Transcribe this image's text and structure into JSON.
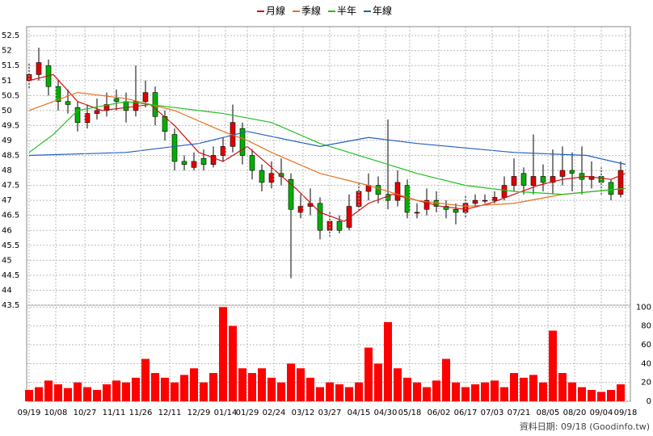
{
  "chart_data": [
    {
      "type": "candlestick",
      "legend": "top",
      "grid": true,
      "up_color": "#e00000",
      "down_color": "#00b000",
      "xlim": [
        -1,
        248
      ],
      "ylim": [
        43.5,
        52.8
      ],
      "yticks": [
        43.5,
        44,
        44.5,
        45,
        45.5,
        46,
        46.5,
        47,
        47.5,
        48,
        48.5,
        49,
        49.5,
        50,
        50.5,
        51,
        51.5,
        52,
        52.5
      ],
      "xticks": [
        {
          "value": 0,
          "label": "09/19"
        },
        {
          "value": 11,
          "label": "10/08"
        },
        {
          "value": 23,
          "label": "10/27"
        },
        {
          "value": 35,
          "label": "11/11"
        },
        {
          "value": 46,
          "label": "11/26"
        },
        {
          "value": 58,
          "label": "12/11"
        },
        {
          "value": 70,
          "label": "12/29"
        },
        {
          "value": 81,
          "label": "01/14"
        },
        {
          "value": 90,
          "label": "01/29"
        },
        {
          "value": 101,
          "label": "02/24"
        },
        {
          "value": 113,
          "label": "03/12"
        },
        {
          "value": 124,
          "label": "03/27"
        },
        {
          "value": 136,
          "label": "04/15"
        },
        {
          "value": 147,
          "label": "04/30"
        },
        {
          "value": 157,
          "label": "05/18"
        },
        {
          "value": 169,
          "label": "06/02"
        },
        {
          "value": 180,
          "label": "06/17"
        },
        {
          "value": 191,
          "label": "07/03"
        },
        {
          "value": 202,
          "label": "07/21"
        },
        {
          "value": 214,
          "label": "08/05"
        },
        {
          "value": 225,
          "label": "08/20"
        },
        {
          "value": 236,
          "label": "09/04"
        },
        {
          "value": 246,
          "label": "09/18"
        }
      ],
      "x": [
        0,
        4,
        8,
        12,
        16,
        20,
        24,
        28,
        32,
        36,
        40,
        44,
        48,
        52,
        56,
        60,
        64,
        68,
        72,
        76,
        80,
        84,
        88,
        92,
        96,
        100,
        104,
        108,
        112,
        116,
        120,
        124,
        128,
        132,
        136,
        140,
        144,
        148,
        152,
        156,
        160,
        164,
        168,
        172,
        176,
        180,
        184,
        188,
        192,
        196,
        200,
        204,
        208,
        212,
        216,
        220,
        224,
        228,
        232,
        236,
        240,
        244
      ],
      "open": [
        51.0,
        51.2,
        51.5,
        50.8,
        50.3,
        50.1,
        49.6,
        49.9,
        50.0,
        50.4,
        50.3,
        50.0,
        50.3,
        50.6,
        49.8,
        49.2,
        48.3,
        48.1,
        48.4,
        48.2,
        48.5,
        48.8,
        49.4,
        48.5,
        48.0,
        47.6,
        47.9,
        47.7,
        46.6,
        46.8,
        46.9,
        46.0,
        46.3,
        46.1,
        46.8,
        47.3,
        47.5,
        47.2,
        47.0,
        47.5,
        46.6,
        46.7,
        47.0,
        46.8,
        46.7,
        46.6,
        46.9,
        47.0,
        47.0,
        47.1,
        47.5,
        47.9,
        47.5,
        47.8,
        47.6,
        47.8,
        48.0,
        47.9,
        47.7,
        47.8,
        47.6,
        47.2
      ],
      "high": [
        51.6,
        52.1,
        51.7,
        51.0,
        50.7,
        50.3,
        50.2,
        50.4,
        50.6,
        50.7,
        50.6,
        51.5,
        51.0,
        50.8,
        50.0,
        49.4,
        48.5,
        48.6,
        48.7,
        48.8,
        49.1,
        50.2,
        49.6,
        48.7,
        48.2,
        48.3,
        48.4,
        47.9,
        47.2,
        47.4,
        47.1,
        46.6,
        46.5,
        47.2,
        47.6,
        47.9,
        47.8,
        49.7,
        48.0,
        47.7,
        46.9,
        47.4,
        47.3,
        47.0,
        46.9,
        47.2,
        47.2,
        47.2,
        47.3,
        47.8,
        48.4,
        48.1,
        49.2,
        48.2,
        48.7,
        48.8,
        48.6,
        48.8,
        48.3,
        48.1,
        47.7,
        48.3
      ],
      "low": [
        50.7,
        51.0,
        50.5,
        50.0,
        49.9,
        49.3,
        49.4,
        49.7,
        49.8,
        50.0,
        49.6,
        49.8,
        50.1,
        49.5,
        49.0,
        48.0,
        48.0,
        48.0,
        48.0,
        48.1,
        48.3,
        48.6,
        48.2,
        47.7,
        47.3,
        47.4,
        47.5,
        44.4,
        46.4,
        46.5,
        45.7,
        45.8,
        45.9,
        46.0,
        46.6,
        47.0,
        46.9,
        46.7,
        46.8,
        46.4,
        46.4,
        46.5,
        46.6,
        46.4,
        46.2,
        46.4,
        46.8,
        46.9,
        46.9,
        47.0,
        47.3,
        47.2,
        47.2,
        47.3,
        47.2,
        47.5,
        47.3,
        47.2,
        47.4,
        47.2,
        47.0,
        47.1
      ],
      "close": [
        51.2,
        51.6,
        50.8,
        50.3,
        50.2,
        49.6,
        49.9,
        50.0,
        50.2,
        50.3,
        50.0,
        50.3,
        50.6,
        49.8,
        49.3,
        48.3,
        48.2,
        48.3,
        48.2,
        48.5,
        48.8,
        49.6,
        48.5,
        48.0,
        47.6,
        47.9,
        47.8,
        46.7,
        46.8,
        46.9,
        46.0,
        46.3,
        46.0,
        46.8,
        47.3,
        47.5,
        47.2,
        47.0,
        47.6,
        46.6,
        46.6,
        47.0,
        46.8,
        46.7,
        46.6,
        46.9,
        47.0,
        47.0,
        47.1,
        47.5,
        47.8,
        47.5,
        47.8,
        47.6,
        47.8,
        48.0,
        47.9,
        47.7,
        47.8,
        47.6,
        47.2,
        48.0
      ],
      "series": [
        {
          "name": "月線",
          "color": "#d01010",
          "x": [
            0,
            10,
            20,
            30,
            40,
            50,
            60,
            70,
            80,
            90,
            100,
            110,
            120,
            130,
            140,
            150,
            160,
            170,
            180,
            190,
            200,
            210,
            220,
            230,
            240,
            246
          ],
          "values": [
            51.0,
            51.2,
            50.3,
            50.0,
            50.1,
            50.2,
            49.5,
            48.6,
            48.3,
            48.8,
            48.1,
            47.4,
            46.6,
            46.3,
            46.9,
            47.2,
            47.0,
            46.8,
            46.7,
            46.9,
            47.2,
            47.5,
            47.7,
            47.8,
            47.7,
            47.9
          ]
        },
        {
          "name": "季線",
          "color": "#e87020",
          "x": [
            0,
            20,
            40,
            60,
            80,
            90,
            100,
            120,
            140,
            160,
            180,
            200,
            220,
            246
          ],
          "values": [
            50.0,
            50.6,
            50.4,
            50.0,
            49.3,
            49.0,
            48.6,
            47.9,
            47.5,
            47.0,
            46.8,
            46.9,
            47.2,
            47.4
          ]
        },
        {
          "name": "半年",
          "color": "#20c020",
          "x": [
            0,
            10,
            20,
            40,
            60,
            80,
            100,
            120,
            140,
            160,
            180,
            200,
            220,
            246
          ],
          "values": [
            48.6,
            49.2,
            50.0,
            50.3,
            50.1,
            49.9,
            49.6,
            48.9,
            48.4,
            47.9,
            47.5,
            47.3,
            47.2,
            47.4
          ]
        },
        {
          "name": "年線",
          "color": "#2060c0",
          "x": [
            0,
            40,
            70,
            90,
            120,
            140,
            160,
            200,
            230,
            246
          ],
          "values": [
            48.5,
            48.6,
            48.9,
            49.3,
            48.8,
            49.1,
            48.9,
            48.6,
            48.5,
            48.2
          ]
        }
      ]
    },
    {
      "type": "bar",
      "color": "#ff0000",
      "grid": true,
      "xlim": [
        -1,
        248
      ],
      "ylim": [
        0,
        102
      ],
      "yticks": [
        0,
        20,
        40,
        60,
        80,
        100
      ],
      "x": [
        0,
        4,
        8,
        12,
        16,
        20,
        24,
        28,
        32,
        36,
        40,
        44,
        48,
        52,
        56,
        60,
        64,
        68,
        72,
        76,
        80,
        84,
        88,
        92,
        96,
        100,
        104,
        108,
        112,
        116,
        120,
        124,
        128,
        132,
        136,
        140,
        144,
        148,
        152,
        156,
        160,
        164,
        168,
        172,
        176,
        180,
        184,
        188,
        192,
        196,
        200,
        204,
        208,
        212,
        216,
        220,
        224,
        228,
        232,
        236,
        240,
        244
      ],
      "values": [
        12,
        15,
        22,
        18,
        14,
        20,
        15,
        12,
        18,
        22,
        20,
        25,
        45,
        30,
        25,
        20,
        28,
        35,
        20,
        30,
        100,
        80,
        35,
        30,
        35,
        25,
        20,
        40,
        35,
        25,
        15,
        20,
        18,
        15,
        20,
        57,
        40,
        84,
        35,
        25,
        20,
        15,
        22,
        45,
        20,
        15,
        18,
        20,
        22,
        15,
        30,
        25,
        28,
        20,
        75,
        30,
        20,
        15,
        12,
        10,
        12,
        18
      ],
      "footnote": "資料日期: 09/18  (Goodinfo.tw)"
    }
  ]
}
